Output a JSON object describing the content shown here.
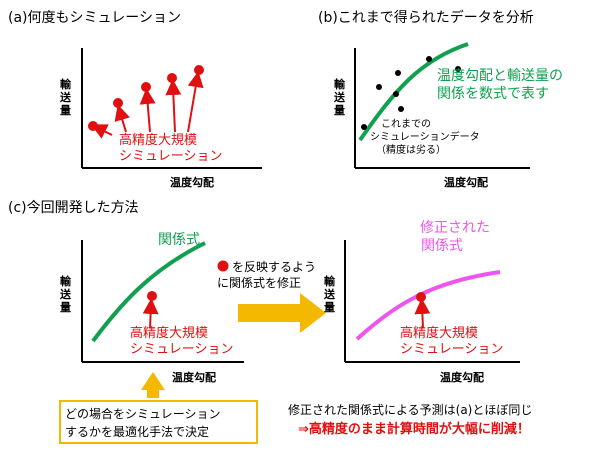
{
  "panel_a": {
    "title": "(a)何度もシミュレーション",
    "ylabel": "輸\n送\n量",
    "xlabel": "温度勾配",
    "annotation_line1": "高精度大規模",
    "annotation_line2": "シミュレーション"
  },
  "panel_b": {
    "title": "(b)これまで得られたデータを分析",
    "ylabel": "輸\n送\n量",
    "xlabel": "温度勾配",
    "fit_line1": "温度勾配と輸送量の",
    "fit_line2": "関係を数式で表す",
    "data_line1": "これまでの",
    "data_line2": "シミュレーションデータ",
    "data_line3": "（精度は劣る）"
  },
  "panel_c": {
    "title": "(c)今回開発した方法",
    "left": {
      "curve_label": "関係式",
      "ylabel": "輸\n送\n量",
      "xlabel": "温度勾配",
      "annotation_line1": "高精度大規模",
      "annotation_line2": "シミュレーション"
    },
    "arrow_text_line1": "を反映するよう",
    "arrow_text_line2": "に関係式を修正",
    "right": {
      "curve_label_line1": "修正された",
      "curve_label_line2": "関係式",
      "ylabel": "輸\n送\n量",
      "xlabel": "温度勾配",
      "annotation_line1": "高精度大規模",
      "annotation_line2": "シミュレーション"
    },
    "optimize_box_line1": "どの場合をシミュレーション",
    "optimize_box_line2": "するかを最適化手法で決定",
    "result_line1": "修正された関係式による予測は(a)とほぼ同じ",
    "result_line2": "⇒高精度のまま計算時間が大幅に削減！"
  },
  "colors": {
    "red": "#e01010",
    "green": "#10a050",
    "pink": "#ee55ee",
    "orange_arrow": "#f5b800",
    "box_border": "#f5b800"
  }
}
